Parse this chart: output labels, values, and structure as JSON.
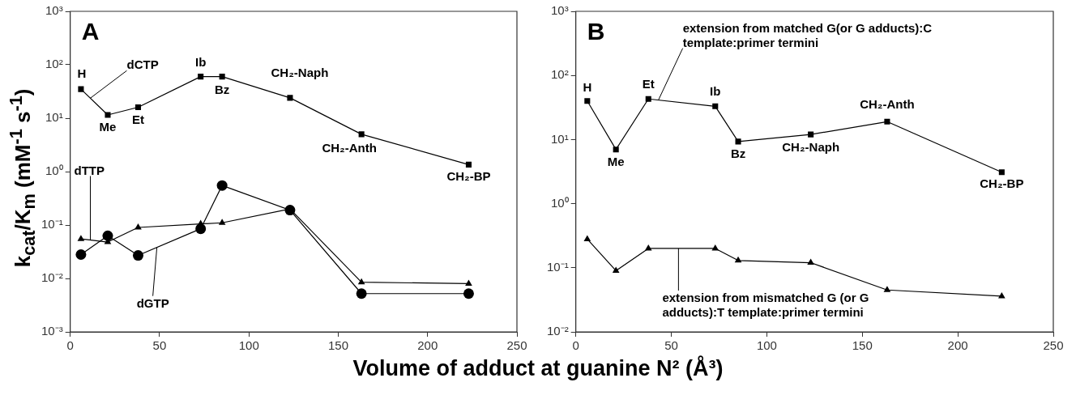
{
  "chart_data": [
    {
      "type": "line",
      "title": "A",
      "ylabel": "k$_{cat}$/K$_{m}$ (mM$^{-1}$ s$^{-1}$)",
      "xlabel": "Volume of adduct at guanine N² (Å³)",
      "log": "y",
      "grid": false,
      "legend": false,
      "line_style": "solid",
      "x": [
        6,
        21,
        38,
        73,
        85,
        123,
        163,
        223
      ],
      "xlim": [
        0,
        250
      ],
      "xticks": [
        0,
        50,
        100,
        150,
        200,
        250
      ],
      "ylim": [
        0.001,
        1000
      ],
      "yticks": [
        {
          "value": 0.001,
          "label": "10⁻³"
        },
        {
          "value": 0.01,
          "label": "10⁻²"
        },
        {
          "value": 0.1,
          "label": "10⁻¹"
        },
        {
          "value": 1,
          "label": "10⁰"
        },
        {
          "value": 10,
          "label": "10¹"
        },
        {
          "value": 100,
          "label": "10²"
        },
        {
          "value": 1000,
          "label": "10³"
        }
      ],
      "series": [
        {
          "name": "dCTP",
          "color": "#000000",
          "marker": "square",
          "values": [
            35,
            11.5,
            16,
            60,
            60,
            24,
            5,
            1.35
          ]
        },
        {
          "name": "dTTP",
          "color": "#000000",
          "marker": "triangle",
          "values": [
            0.055,
            0.048,
            0.09,
            0.105,
            0.11,
            0.2,
            0.0085,
            0.008
          ]
        },
        {
          "name": "dGTP",
          "color": "#000000",
          "marker": "circle",
          "values": [
            0.028,
            0.063,
            0.027,
            0.085,
            0.55,
            0.19,
            0.0052,
            0.0052
          ]
        }
      ],
      "annotations": [
        {
          "text": "H",
          "x": 6,
          "y": 35
        },
        {
          "text": "Me",
          "x": 21,
          "y": 11.5
        },
        {
          "text": "Et",
          "x": 38,
          "y": 16
        },
        {
          "text": "Ib",
          "x": 73,
          "y": 60
        },
        {
          "text": "Bz",
          "x": 85,
          "y": 60
        },
        {
          "text": "CH₂-Naph",
          "x": 123,
          "y": 24
        },
        {
          "text": "CH₂-Anth",
          "x": 163,
          "y": 5
        },
        {
          "text": "CH₂-BP",
          "x": 223,
          "y": 1.35
        }
      ]
    },
    {
      "type": "line",
      "title": "B",
      "log": "y",
      "grid": false,
      "legend": false,
      "line_style": "solid",
      "x": [
        6,
        21,
        38,
        73,
        85,
        123,
        163,
        223
      ],
      "xlim": [
        0,
        250
      ],
      "xticks": [
        0,
        50,
        100,
        150,
        200,
        250
      ],
      "ylim": [
        0.01,
        1000
      ],
      "yticks": [
        {
          "value": 0.01,
          "label": "10⁻²"
        },
        {
          "value": 0.1,
          "label": "10⁻¹"
        },
        {
          "value": 1,
          "label": "10⁰"
        },
        {
          "value": 10,
          "label": "10¹"
        },
        {
          "value": 100,
          "label": "10²"
        },
        {
          "value": 1000,
          "label": "10³"
        }
      ],
      "series": [
        {
          "name": "extension from matched G(or G adducts):C template:primer termini",
          "color": "#000000",
          "marker": "square",
          "values": [
            40,
            7,
            43,
            33,
            9.3,
            12,
            19,
            3.1
          ]
        },
        {
          "name": "extension from mismatched G (or G adducts):T template:primer termini",
          "color": "#000000",
          "marker": "triangle",
          "values": [
            0.28,
            0.09,
            0.2,
            0.2,
            0.13,
            0.12,
            0.045,
            0.036
          ]
        }
      ],
      "annotations": [
        {
          "text": "H",
          "x": 6,
          "y": 40
        },
        {
          "text": "Me",
          "x": 21,
          "y": 7
        },
        {
          "text": "Et",
          "x": 38,
          "y": 43
        },
        {
          "text": "Ib",
          "x": 73,
          "y": 33
        },
        {
          "text": "Bz",
          "x": 85,
          "y": 9.3
        },
        {
          "text": "CH₂-Naph",
          "x": 123,
          "y": 12
        },
        {
          "text": "CH₂-Anth",
          "x": 163,
          "y": 19
        },
        {
          "text": "CH₂-BP",
          "x": 223,
          "y": 3.1
        }
      ]
    }
  ]
}
